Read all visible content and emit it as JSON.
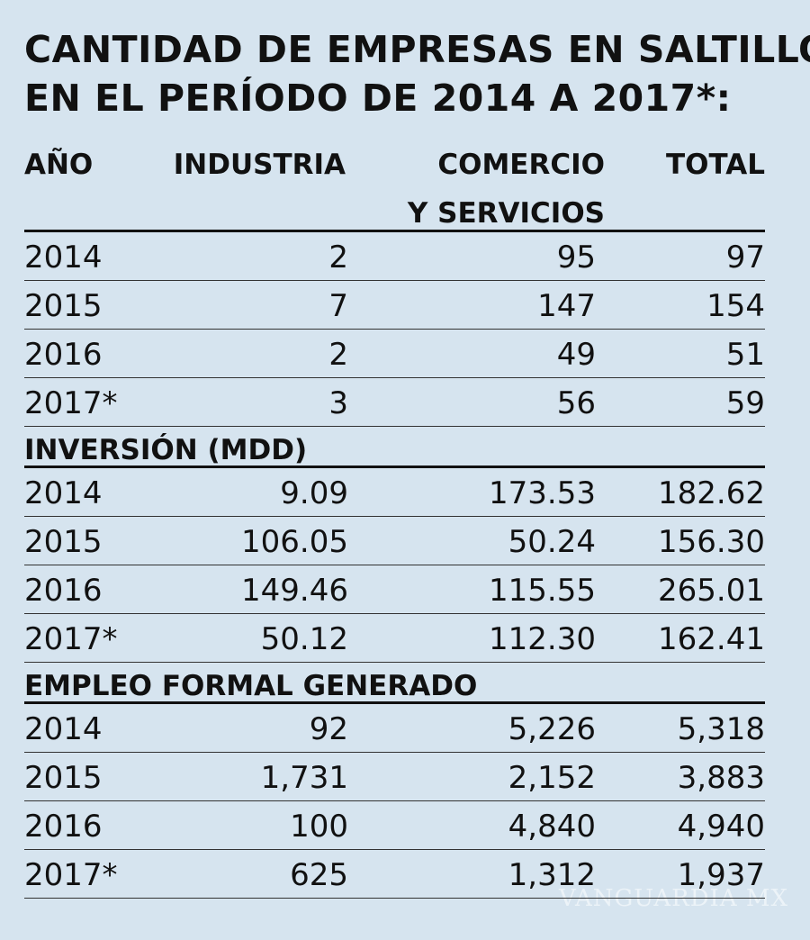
{
  "title_line1": "CANTIDAD DE EMPRESAS EN SALTILLO",
  "title_line2": "EN EL PERÍODO DE 2014 A 2017*:",
  "headers": {
    "year": "AÑO",
    "industry": "INDUSTRIA",
    "commerce_l1": "COMERCIO",
    "commerce_l2": "Y SERVICIOS",
    "total": "TOTAL"
  },
  "watermark": "VANGUARDIA MX",
  "chart_data": {
    "type": "table",
    "columns": [
      "AÑO",
      "INDUSTRIA",
      "COMERCIO Y SERVICIOS",
      "TOTAL"
    ],
    "sections": [
      {
        "title": "",
        "rows": [
          [
            "2014",
            "2",
            "95",
            "97"
          ],
          [
            "2015",
            "7",
            "147",
            "154"
          ],
          [
            "2016",
            "2",
            "49",
            "51"
          ],
          [
            "2017*",
            "3",
            "56",
            "59"
          ]
        ]
      },
      {
        "title": "INVERSIÓN (MDD)",
        "rows": [
          [
            "2014",
            "9.09",
            "173.53",
            "182.62"
          ],
          [
            "2015",
            "106.05",
            "50.24",
            "156.30"
          ],
          [
            "2016",
            "149.46",
            "115.55",
            "265.01"
          ],
          [
            "2017*",
            "50.12",
            "112.30",
            "162.41"
          ]
        ]
      },
      {
        "title": "EMPLEO FORMAL GENERADO",
        "rows": [
          [
            "2014",
            "92",
            "5,226",
            "5,318"
          ],
          [
            "2015",
            "1,731",
            "2,152",
            "3,883"
          ],
          [
            "2016",
            "100",
            "4,840",
            "4,940"
          ],
          [
            "2017*",
            "625",
            "1,312",
            "1,937"
          ]
        ]
      }
    ]
  }
}
